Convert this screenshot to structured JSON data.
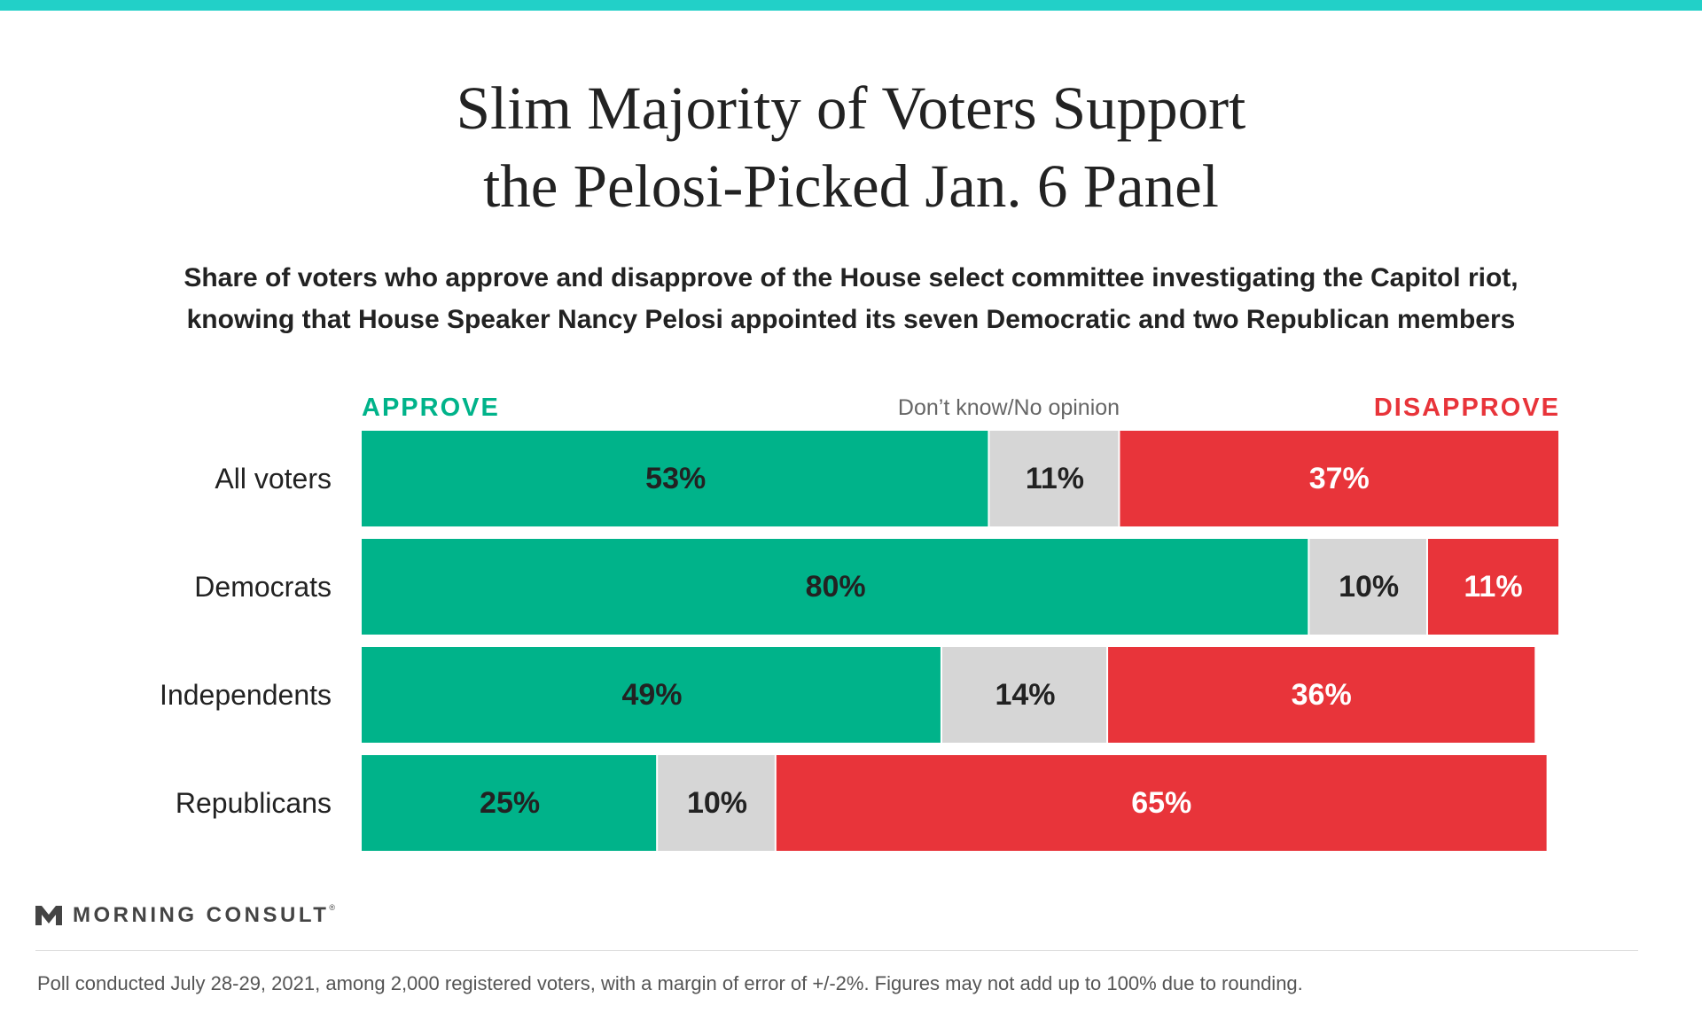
{
  "header": {
    "title_line1": "Slim Majority of Voters Support",
    "title_line2": "the Pelosi-Picked Jan. 6 Panel",
    "subtitle_line1": "Share of voters who approve and disapprove of the House select committee investigating the Capitol riot,",
    "subtitle_line2": "knowing that House Speaker Nancy Pelosi appointed its seven Democratic and two Republican members"
  },
  "legend": {
    "approve": "APPROVE",
    "neutral": "Don’t know/No opinion",
    "disapprove": "DISAPPROVE"
  },
  "colors": {
    "approve": "#00b38a",
    "neutral": "#d6d6d6",
    "disapprove": "#e8343a",
    "accent_bar": "#22d0c8"
  },
  "chart_data": {
    "type": "bar",
    "orientation": "horizontal",
    "stacked": true,
    "categories": [
      "All voters",
      "Democrats",
      "Independents",
      "Republicans"
    ],
    "series": [
      {
        "name": "APPROVE",
        "values": [
          53,
          80,
          49,
          25
        ],
        "labels": [
          "53%",
          "80%",
          "49%",
          "25%"
        ]
      },
      {
        "name": "Don’t know/No opinion",
        "values": [
          11,
          10,
          14,
          10
        ],
        "labels": [
          "11%",
          "10%",
          "14%",
          "10%"
        ]
      },
      {
        "name": "DISAPPROVE",
        "values": [
          37,
          11,
          36,
          65
        ],
        "labels": [
          "37%",
          "11%",
          "36%",
          "65%"
        ]
      }
    ],
    "xlim": [
      0,
      101
    ],
    "legend_position": "top",
    "grid": false
  },
  "branding": {
    "logo_text": "MORNING CONSULT",
    "trademark": "®"
  },
  "footer": {
    "note": "Poll conducted July 28-29, 2021, among 2,000 registered voters, with a margin of error of +/-2%. Figures may not add up to 100% due to rounding."
  }
}
